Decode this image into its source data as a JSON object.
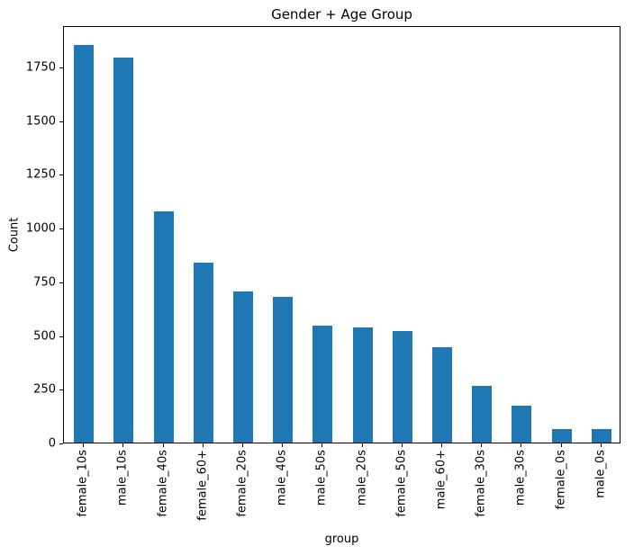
{
  "chart_data": {
    "type": "bar",
    "title": "Gender + Age Group",
    "xlabel": "group",
    "ylabel": "Count",
    "categories": [
      "female_10s",
      "male_10s",
      "female_40s",
      "female_60+",
      "female_20s",
      "male_40s",
      "male_50s",
      "male_20s",
      "female_50s",
      "male_60+",
      "female_30s",
      "male_30s",
      "female_0s",
      "male_0s"
    ],
    "values": [
      1850,
      1790,
      1075,
      835,
      705,
      680,
      545,
      535,
      520,
      445,
      265,
      170,
      63,
      62
    ],
    "yticks": [
      0,
      250,
      500,
      750,
      1000,
      1250,
      1500,
      1750
    ],
    "ylim": [
      0,
      1942
    ],
    "bar_color": "#1f77b4",
    "grid": "off",
    "legend": "none",
    "x_tick_rotation": 90
  }
}
